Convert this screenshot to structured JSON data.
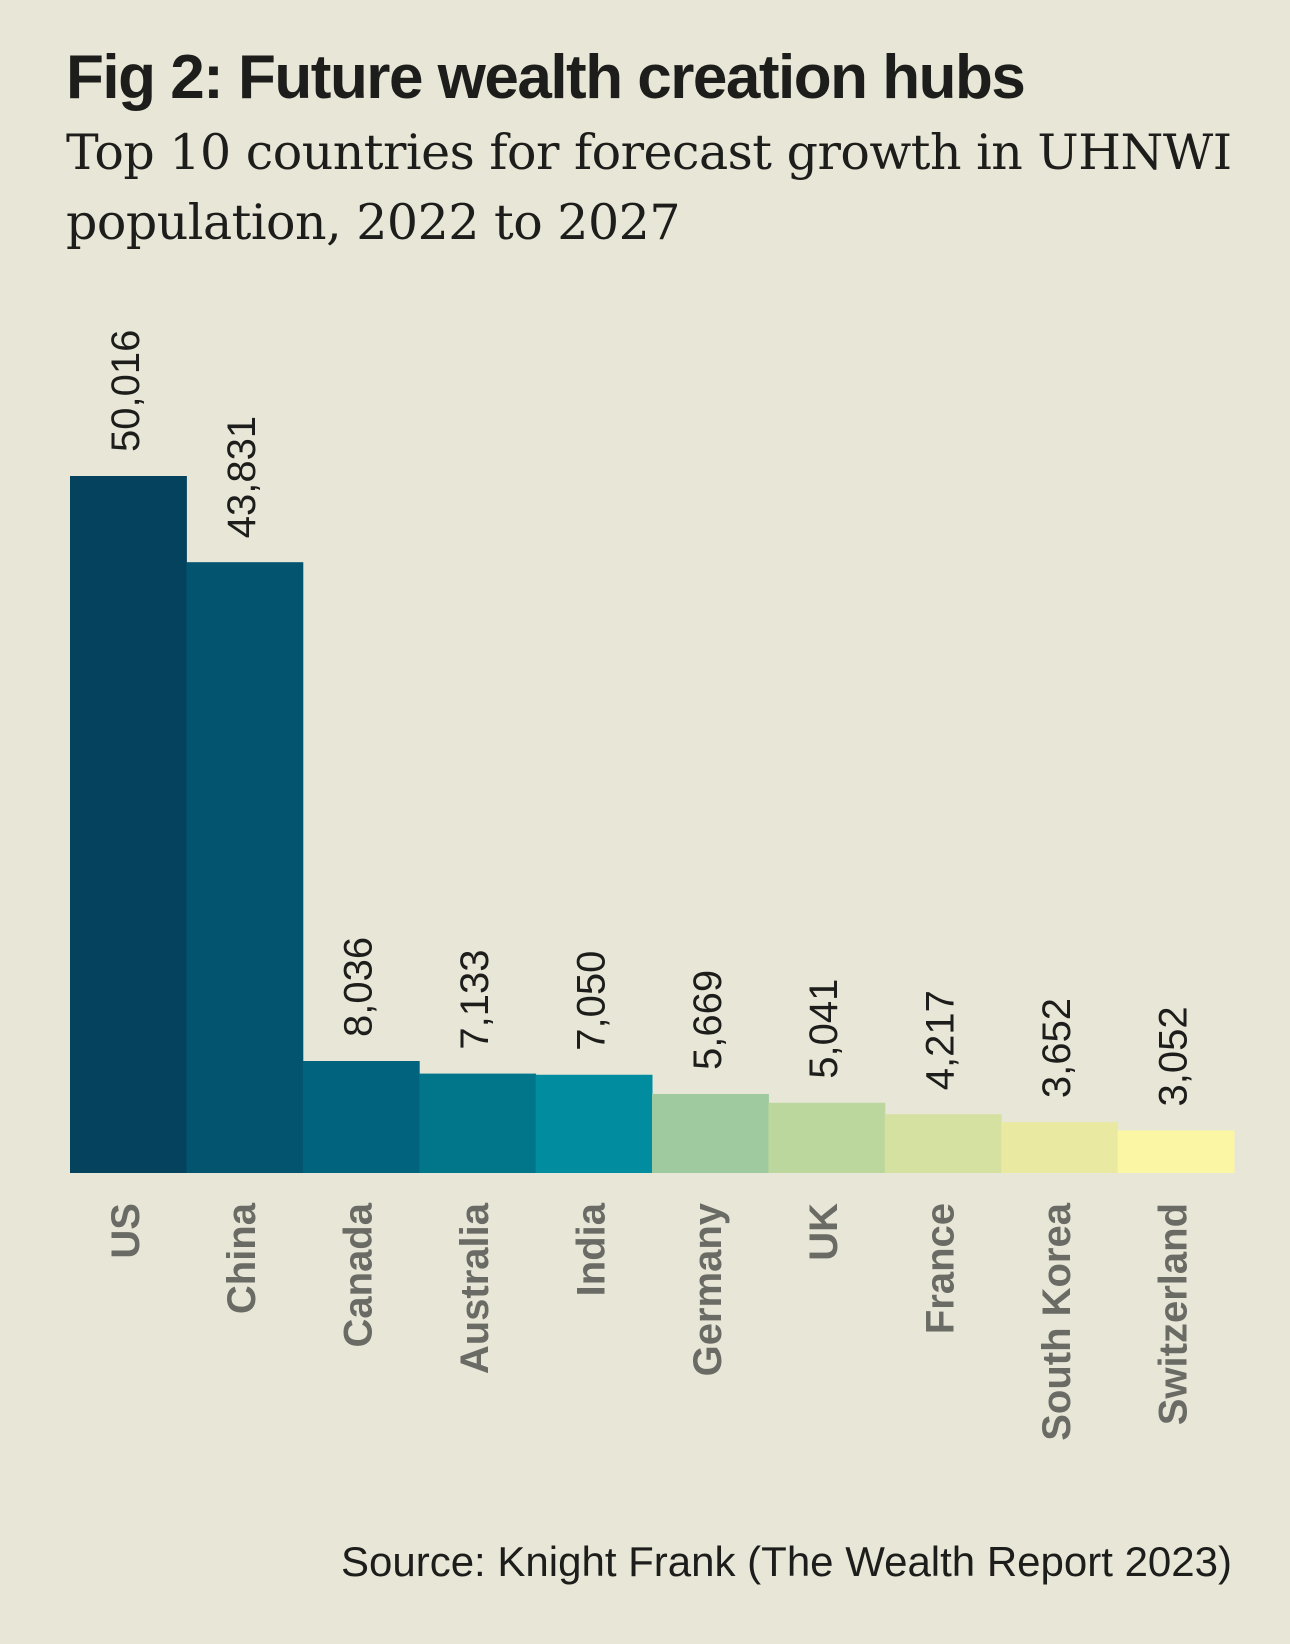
{
  "header": {
    "title": "Fig 2: Future wealth creation hubs",
    "subtitle": "Top 10 countries for forecast growth in UHNWI population, 2022 to 2027"
  },
  "footer": {
    "source": "Source: Knight Frank (The Wealth Report 2023)"
  },
  "chart_data": {
    "type": "bar",
    "title": "Fig 2: Future wealth creation hubs",
    "subtitle": "Top 10 countries for forecast growth in UHNWI population, 2022 to 2027",
    "categories": [
      "US",
      "China",
      "Canada",
      "Australia",
      "India",
      "Germany",
      "UK",
      "France",
      "South Korea",
      "Switzerland"
    ],
    "values": [
      50016,
      43831,
      8036,
      7133,
      7050,
      5669,
      5041,
      4217,
      3652,
      3052
    ],
    "value_labels": [
      "50,016",
      "43,831",
      "8,036",
      "7,133",
      "7,050",
      "5,669",
      "5,041",
      "4,217",
      "3,652",
      "3,052"
    ],
    "colors": [
      "#05425e",
      "#02546f",
      "#02637e",
      "#017589",
      "#018d9f",
      "#9fc99f",
      "#bcd79e",
      "#d5e1a1",
      "#e9e9a2",
      "#fbf6a3"
    ],
    "xlabel": "",
    "ylabel": "",
    "ylim": [
      0,
      50016
    ],
    "grid": false,
    "legend": "none"
  }
}
